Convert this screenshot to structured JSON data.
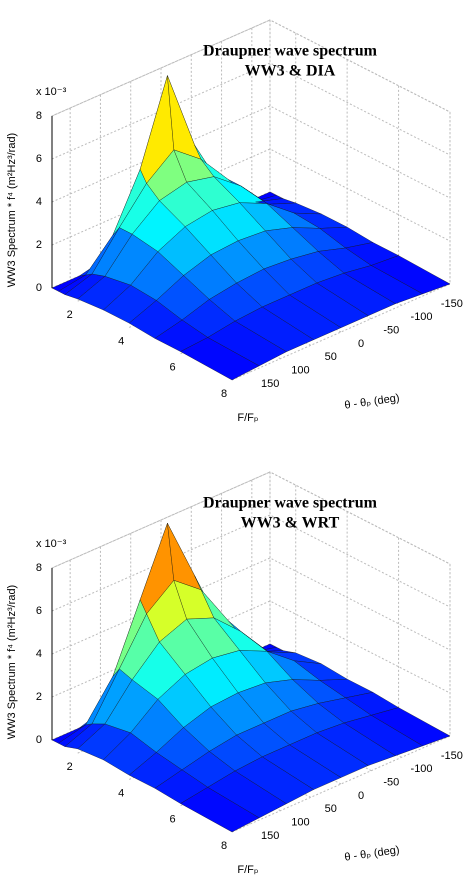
{
  "chart_data": [
    {
      "type": "surface",
      "title": "Draupner wave spectrum",
      "subtitle": "WW3 & DIA",
      "z_multiplier": "x 10⁻³",
      "xlabel": "F/Fₚ",
      "ylabel": "θ - θₚ (deg)",
      "zlabel": "WW3 Spectrum * f⁴ (m²Hz³/rad)",
      "colormap": "jet",
      "grid": true,
      "x": [
        1,
        1.25,
        1.5,
        2,
        3,
        4,
        5,
        6,
        8
      ],
      "y": [
        -180,
        -135,
        -90,
        -45,
        0,
        45,
        90,
        135,
        180
      ],
      "z": [
        [
          0,
          0,
          0.3,
          1,
          1.5,
          1,
          0.3,
          0,
          0
        ],
        [
          0,
          0.2,
          1.5,
          4,
          7.8,
          4,
          1.5,
          0.2,
          0
        ],
        [
          0,
          0.4,
          2,
          3.5,
          4.5,
          3.5,
          2,
          0.4,
          0
        ],
        [
          0.1,
          0.6,
          2,
          3,
          3.3,
          3,
          2,
          0.6,
          0.1
        ],
        [
          0.2,
          0.8,
          1.8,
          2.4,
          2.6,
          2.4,
          1.8,
          0.8,
          0.2
        ],
        [
          0.2,
          0.7,
          1.3,
          1.7,
          1.8,
          1.7,
          1.3,
          0.7,
          0.2
        ],
        [
          0.1,
          0.4,
          0.8,
          1,
          1.1,
          1,
          0.8,
          0.4,
          0.1
        ],
        [
          0.1,
          0.2,
          0.4,
          0.5,
          0.5,
          0.5,
          0.4,
          0.2,
          0.1
        ],
        [
          0,
          0.1,
          0.2,
          0.2,
          0.2,
          0.2,
          0.2,
          0.1,
          0
        ]
      ],
      "xlim": [
        1,
        8
      ],
      "ylim": [
        -180,
        180
      ],
      "zlim": [
        0,
        8
      ],
      "xticks": [
        2,
        4,
        6,
        8
      ],
      "yticks": [
        -150,
        -100,
        -50,
        0,
        50,
        100,
        150
      ],
      "zticks": [
        0,
        2,
        4,
        6,
        8
      ]
    },
    {
      "type": "surface",
      "title": "Draupner wave spectrum",
      "subtitle": "WW3 & WRT",
      "z_multiplier": "x 10⁻³",
      "xlabel": "F/Fₚ",
      "ylabel": "θ - θₚ (deg)",
      "zlabel": "WW3 Spectrum * f⁴ (m²Hz³/rad)",
      "colormap": "jet",
      "grid": true,
      "x": [
        1,
        1.25,
        1.5,
        2,
        3,
        4,
        5,
        6,
        8
      ],
      "y": [
        -180,
        -135,
        -90,
        -45,
        0,
        45,
        90,
        135,
        180
      ],
      "z": [
        [
          0,
          0,
          0.4,
          1.2,
          2,
          1.2,
          0.4,
          0,
          0
        ],
        [
          0,
          0.3,
          2,
          5,
          8,
          5,
          2,
          0.3,
          0
        ],
        [
          0,
          0.5,
          2.5,
          4.5,
          5.5,
          4.5,
          2.5,
          0.5,
          0
        ],
        [
          0.2,
          0.8,
          2.3,
          3.5,
          4,
          3.5,
          2.3,
          0.8,
          0.2
        ],
        [
          0.3,
          1,
          2,
          2.6,
          2.8,
          2.6,
          2,
          1,
          0.3
        ],
        [
          0.2,
          0.7,
          1.3,
          1.7,
          1.8,
          1.7,
          1.3,
          0.7,
          0.2
        ],
        [
          0.2,
          0.5,
          0.8,
          1,
          1,
          1,
          0.8,
          0.5,
          0.2
        ],
        [
          0.1,
          0.3,
          0.5,
          0.6,
          0.6,
          0.6,
          0.5,
          0.3,
          0.1
        ],
        [
          0,
          0.1,
          0.2,
          0.3,
          0.3,
          0.3,
          0.2,
          0.1,
          0
        ]
      ],
      "xlim": [
        1,
        8
      ],
      "ylim": [
        -180,
        180
      ],
      "zlim": [
        0,
        8
      ],
      "xticks": [
        2,
        4,
        6,
        8
      ],
      "yticks": [
        -150,
        -100,
        -50,
        0,
        50,
        100,
        150
      ],
      "zticks": [
        0,
        2,
        4,
        6,
        8
      ]
    }
  ]
}
